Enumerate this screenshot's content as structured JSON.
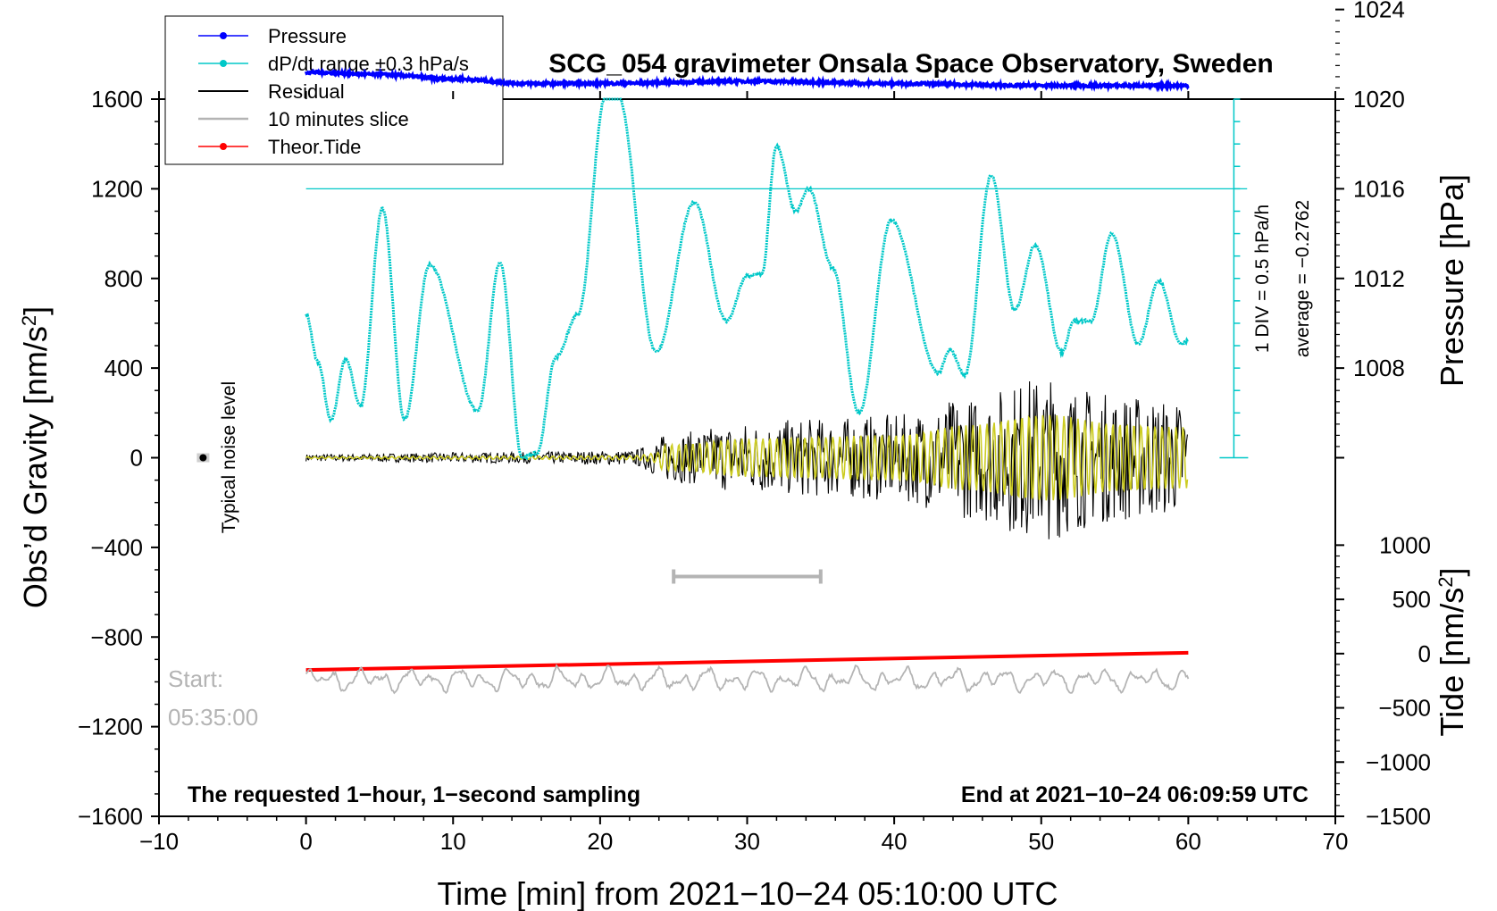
{
  "chart_data": {
    "type": "line",
    "title": "SCG_054 gravimeter Onsala Space Observatory, Sweden",
    "xlabel": "Time [min] from 2021−10−24 05:10:00 UTC",
    "ylabel_left": "Obs’d Gravity [nm/s",
    "ylabel_left_sup": "2",
    "ylabel_left_end": "]",
    "ylabel_right_pressure": "Pressure [hPa]",
    "ylabel_right_tide": "Tide [nm/s",
    "ylabel_right_tide_sup": "2",
    "ylabel_right_tide_end": "]",
    "xlim": [
      -10,
      70
    ],
    "ylim": [
      -1600,
      1600
    ],
    "x_ticks": [
      "−10",
      "0",
      "10",
      "20",
      "30",
      "40",
      "50",
      "60",
      "70"
    ],
    "y_ticks": [
      "1600",
      "1200",
      "800",
      "400",
      "0",
      "−400",
      "−800",
      "−1200",
      "−1600"
    ],
    "pressure_axis": {
      "range": [
        1004,
        1028
      ],
      "ticks": [
        "1008",
        "1012",
        "1016",
        "1020",
        "1024"
      ]
    },
    "tide_axis": {
      "range": [
        -1500,
        1000
      ],
      "ticks": [
        "1000",
        "500",
        "0",
        "−500",
        "−1000",
        "−1500"
      ]
    },
    "legend": [
      {
        "label": "Pressure",
        "color": "#0000ff",
        "marker": true
      },
      {
        "label": "dP/dt range ±0.3 hPa/s",
        "color": "#00c8c8",
        "marker": true
      },
      {
        "label": "Residual",
        "color": "#000000",
        "marker": false
      },
      {
        "label": "10 minutes slice",
        "color": "#b4b4b4",
        "marker": false
      },
      {
        "label": "Theor.Tide",
        "color": "#ff0000",
        "marker": true
      }
    ],
    "series": [
      {
        "name": "Pressure",
        "unit": "hPa",
        "points": [
          [
            0,
            1021.2
          ],
          [
            5,
            1021.1
          ],
          [
            10,
            1020.9
          ],
          [
            15,
            1020.7
          ],
          [
            20,
            1020.7
          ],
          [
            30,
            1020.8
          ],
          [
            40,
            1020.7
          ],
          [
            50,
            1020.6
          ],
          [
            60,
            1020.6
          ]
        ]
      },
      {
        "name": "dP/dt",
        "unit": "nm/s2 (scaled)",
        "points": [
          [
            0,
            640
          ],
          [
            0.8,
            430
          ],
          [
            1.7,
            170
          ],
          [
            2.7,
            440
          ],
          [
            3.7,
            230
          ],
          [
            5.2,
            1110
          ],
          [
            6.7,
            170
          ],
          [
            8.4,
            860
          ],
          [
            11.7,
            210
          ],
          [
            13.2,
            870
          ],
          [
            14.7,
            0
          ],
          [
            15.7,
            20
          ],
          [
            17,
            450
          ],
          [
            18.5,
            640
          ],
          [
            20.4,
            1620
          ],
          [
            21.2,
            1620
          ],
          [
            23.8,
            470
          ],
          [
            26.4,
            1140
          ],
          [
            28.6,
            610
          ],
          [
            30,
            810
          ],
          [
            31,
            820
          ],
          [
            32,
            1390
          ],
          [
            33.3,
            1100
          ],
          [
            34.2,
            1200
          ],
          [
            35.8,
            850
          ],
          [
            37.6,
            200
          ],
          [
            39.8,
            1060
          ],
          [
            43,
            380
          ],
          [
            43.8,
            480
          ],
          [
            44.8,
            370
          ],
          [
            46.6,
            1260
          ],
          [
            48.2,
            660
          ],
          [
            49.6,
            950
          ],
          [
            51.4,
            470
          ],
          [
            52.2,
            610
          ],
          [
            53.4,
            610
          ],
          [
            54.8,
            1000
          ],
          [
            56.6,
            510
          ],
          [
            58,
            790
          ],
          [
            59.5,
            510
          ],
          [
            60,
            520
          ]
        ]
      },
      {
        "name": "Theor.Tide",
        "unit": "nm/s2",
        "points": [
          [
            0,
            -151
          ],
          [
            60,
            8
          ]
        ]
      }
    ],
    "reference_line_pressure": 1016,
    "residual_envelope_nm_s2": [
      [
        0,
        10
      ],
      [
        13,
        15
      ],
      [
        22,
        20
      ],
      [
        25,
        70
      ],
      [
        30,
        100
      ],
      [
        35,
        110
      ],
      [
        40,
        120
      ],
      [
        45,
        170
      ],
      [
        50,
        230
      ],
      [
        55,
        180
      ],
      [
        60,
        160
      ]
    ],
    "slice_bar_min": [
      25,
      35
    ],
    "noise_level": {
      "x": -7,
      "y": 0,
      "error": 20,
      "label": "Typical noise level"
    },
    "scale_bar_label": "1 DIV = 0.5 hPa/h",
    "average_label": "average = −0.2762",
    "start_label": "Start:",
    "start_time": "05:35:00",
    "bottom_left_note": "The requested 1−hour, 1−second sampling",
    "bottom_right_note": "End at 2021−10−24 06:09:59 UTC",
    "colors": {
      "pressure": "#0000ff",
      "dpdt": "#00c8c8",
      "residual": "#000000",
      "slice": "#b4b4b4",
      "tide": "#ff0000",
      "filtered": "#cccc22"
    }
  }
}
